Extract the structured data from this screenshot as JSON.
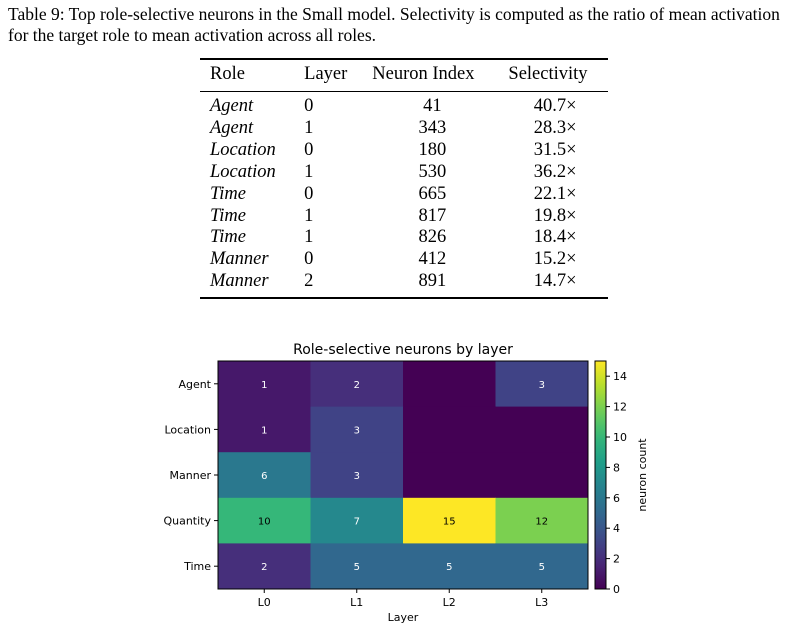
{
  "caption": "Table 9: Top role-selective neurons in the Small model. Selectivity is computed as the ratio of mean activation for the target role to mean activation across all roles.",
  "table": {
    "headers": [
      "Role",
      "Layer",
      "Neuron Index",
      "Selectivity"
    ],
    "rows": [
      {
        "role": "Agent",
        "layer": "0",
        "neuron": "41",
        "selectivity": "40.7×"
      },
      {
        "role": "Agent",
        "layer": "1",
        "neuron": "343",
        "selectivity": "28.3×"
      },
      {
        "role": "Location",
        "layer": "0",
        "neuron": "180",
        "selectivity": "31.5×"
      },
      {
        "role": "Location",
        "layer": "1",
        "neuron": "530",
        "selectivity": "36.2×"
      },
      {
        "role": "Time",
        "layer": "0",
        "neuron": "665",
        "selectivity": "22.1×"
      },
      {
        "role": "Time",
        "layer": "1",
        "neuron": "817",
        "selectivity": "19.8×"
      },
      {
        "role": "Time",
        "layer": "1",
        "neuron": "826",
        "selectivity": "18.4×"
      },
      {
        "role": "Manner",
        "layer": "0",
        "neuron": "412",
        "selectivity": "15.2×"
      },
      {
        "role": "Manner",
        "layer": "2",
        "neuron": "891",
        "selectivity": "14.7×"
      }
    ]
  },
  "chart_data": {
    "type": "heatmap",
    "title": "Role-selective neurons by layer",
    "xlabel": "Layer",
    "ylabel": "",
    "x_categories": [
      "L0",
      "L1",
      "L2",
      "L3"
    ],
    "y_categories": [
      "Agent",
      "Location",
      "Manner",
      "Quantity",
      "Time"
    ],
    "values": [
      [
        1,
        2,
        0,
        3
      ],
      [
        1,
        3,
        0,
        0
      ],
      [
        6,
        3,
        0,
        0
      ],
      [
        10,
        7,
        15,
        12
      ],
      [
        2,
        5,
        5,
        5
      ]
    ],
    "cell_labels": [
      [
        "1",
        "2",
        "",
        "3"
      ],
      [
        "1",
        "3",
        "",
        ""
      ],
      [
        "6",
        "3",
        "",
        ""
      ],
      [
        "10",
        "7",
        "15",
        "12"
      ],
      [
        "2",
        "5",
        "5",
        "5"
      ]
    ],
    "colormap": "viridis",
    "vmin": 0,
    "vmax": 15,
    "colorbar_label": "neuron count",
    "colorbar_ticks": [
      "0",
      "2",
      "4",
      "6",
      "8",
      "10",
      "12",
      "14"
    ],
    "colorbar_tick_values": [
      0,
      2,
      4,
      6,
      8,
      10,
      12,
      14
    ]
  }
}
